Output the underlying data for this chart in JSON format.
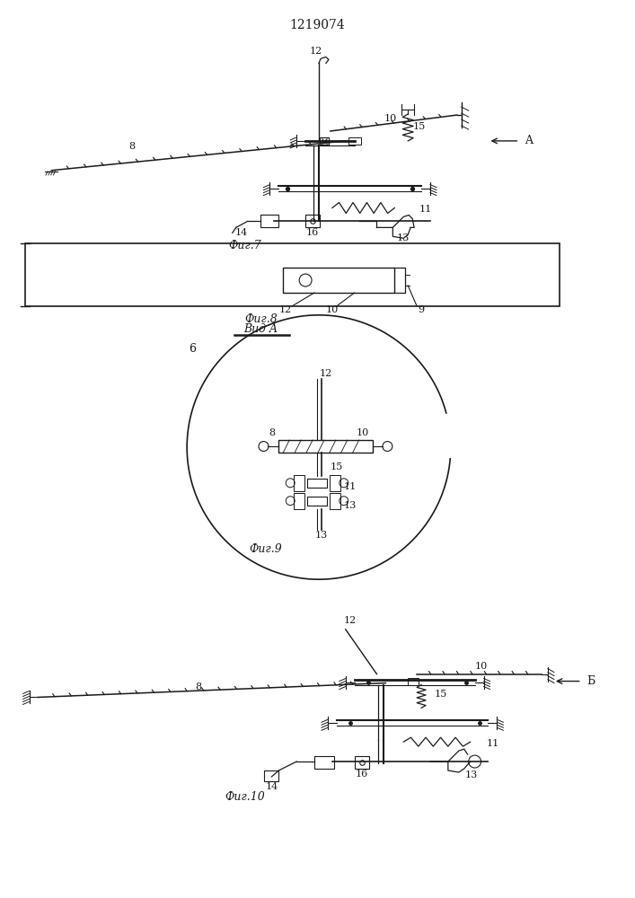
{
  "title": "1219074",
  "bg_color": "#ffffff",
  "line_color": "#1a1a1a",
  "fig7_caption": "Фиг.7",
  "fig8_caption": "Фиг.8",
  "fig8_subcaption": "Вид A",
  "fig9_caption": "Фиг.9",
  "fig10_caption": "Фиг.10",
  "font_size_title": 10,
  "font_size_label": 8,
  "font_size_caption": 9
}
